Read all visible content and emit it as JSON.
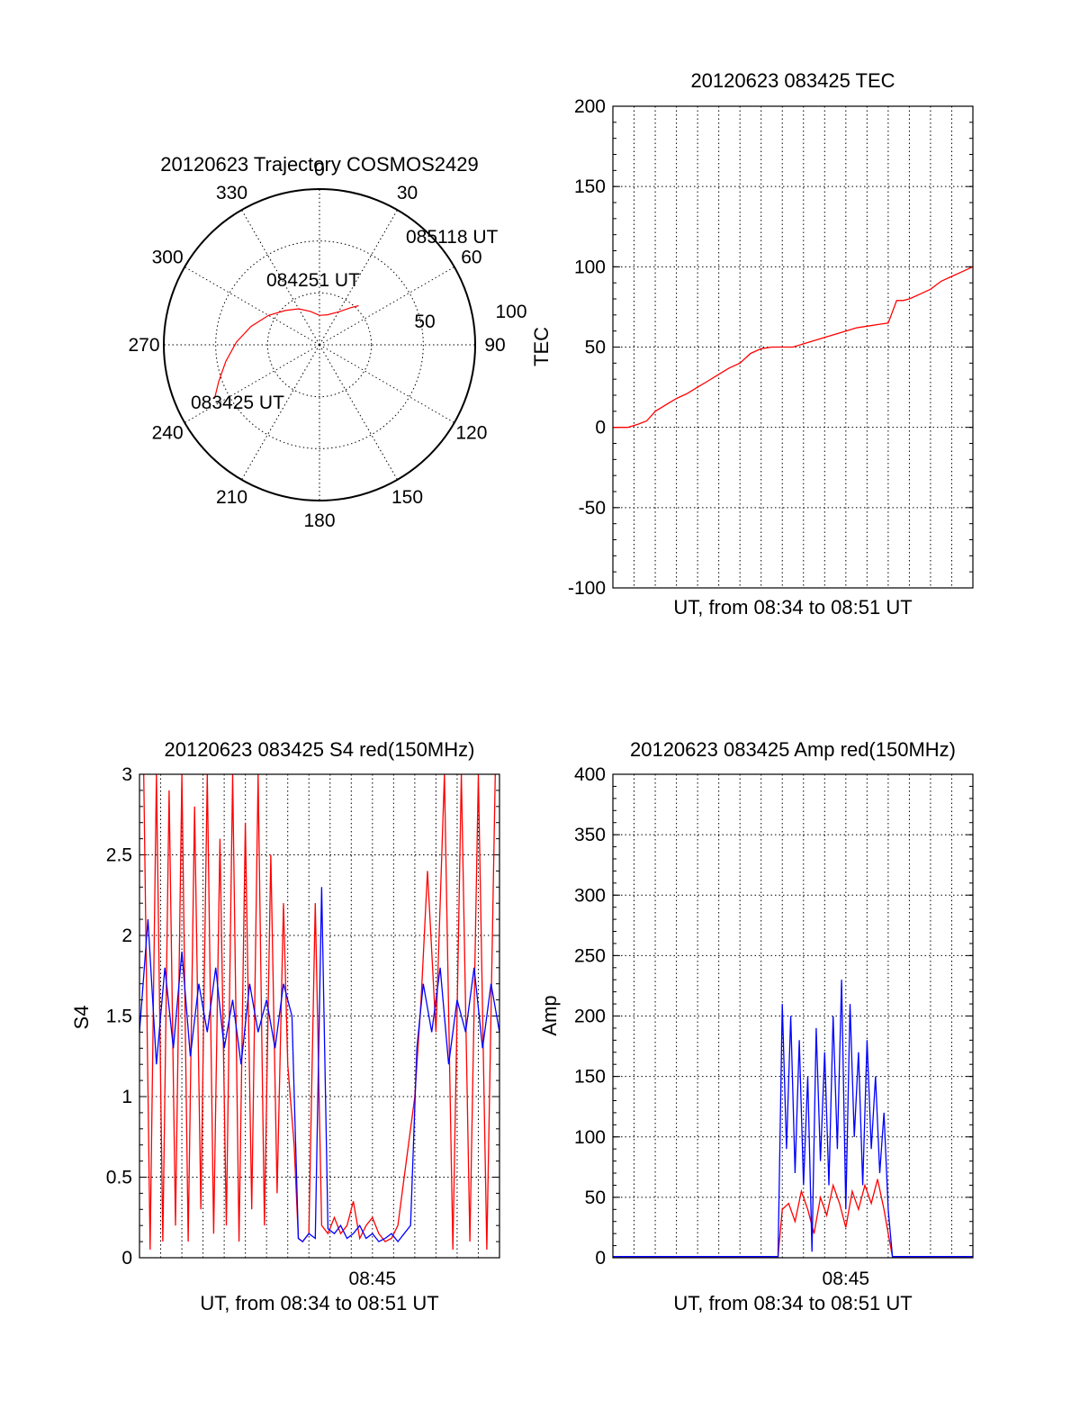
{
  "colors": {
    "red": "#ff0000",
    "blue": "#0000ff",
    "axis": "#000000"
  },
  "chart_data": [
    {
      "type": "polar",
      "title": "20120623 Trajectory COSMOS2429",
      "angle_labels": [
        "0",
        "30",
        "60",
        "90",
        "120",
        "150",
        "180",
        "210",
        "240",
        "270",
        "300",
        "330"
      ],
      "radius_labels": [
        "50",
        "100"
      ],
      "trajectory": {
        "azimuth_deg": [
          243,
          250,
          260,
          272,
          285,
          300,
          315,
          330,
          345,
          0,
          15,
          30,
          40,
          45
        ],
        "elevation_deg": [
          22,
          28,
          35,
          42,
          49,
          56,
          62,
          66,
          70,
          73,
          72,
          68,
          62,
          58
        ]
      },
      "point_labels": [
        "085118 UT",
        "084251 UT",
        "083425 UT"
      ]
    },
    {
      "type": "line",
      "title": "20120623 083425 TEC",
      "xlabel": "UT, from 08:34 to 08:51 UT",
      "ylabel": "TEC",
      "xlim": [
        0,
        17.0
      ],
      "ylim": [
        -100,
        200
      ],
      "yticks": [
        "200",
        "150",
        "100",
        "50",
        "0",
        "-50",
        "-100"
      ],
      "series": [
        {
          "x": [
            0,
            0.7,
            1.2,
            1.6,
            2.0,
            2.5,
            3.0,
            3.5,
            4.0,
            4.5,
            5.0,
            5.5,
            6.0,
            6.5,
            7.0,
            7.5,
            8.0,
            8.5,
            9.0,
            9.5,
            10.0,
            10.5,
            11.0,
            11.5,
            12.0,
            12.5,
            13.0,
            13.2,
            13.4,
            13.7,
            14.0,
            14.5,
            15.0,
            15.5,
            16.0,
            16.5,
            17.0
          ],
          "y": [
            0,
            0,
            2,
            4,
            10,
            14,
            18,
            21,
            25,
            29,
            33,
            37,
            40,
            46,
            49,
            50,
            50,
            50,
            52,
            54,
            56,
            58,
            60,
            62,
            63,
            64,
            65,
            72,
            79,
            79,
            80,
            83,
            86,
            91,
            94,
            97,
            100
          ]
        }
      ]
    },
    {
      "type": "line",
      "title": "20120623 083425 S4 red(150MHz)",
      "xlabel": "UT, from 08:34 to 08:51 UT",
      "ylabel": "S4",
      "xlim": [
        0,
        17.0
      ],
      "ylim": [
        0,
        3
      ],
      "yticks": [
        "3",
        "2.5",
        "2",
        "1.5",
        "1",
        "0.5",
        "0"
      ],
      "xticks": [
        "08:45"
      ],
      "xtick_values": [
        11.0
      ],
      "series": [
        {
          "name": "red",
          "x": [
            0.2,
            0.5,
            0.8,
            1.1,
            1.4,
            1.7,
            2.0,
            2.3,
            2.6,
            2.9,
            3.2,
            3.5,
            3.8,
            4.1,
            4.4,
            4.7,
            5.0,
            5.3,
            5.6,
            5.9,
            6.2,
            6.5,
            6.8,
            7.0,
            7.3,
            7.5,
            7.7,
            8.0,
            8.3,
            8.6,
            8.9,
            9.2,
            9.5,
            9.8,
            10.1,
            10.4,
            10.7,
            11.0,
            11.3,
            11.6,
            11.9,
            12.2,
            12.5,
            12.8,
            13.0,
            13.3,
            13.6,
            14.0,
            14.4,
            14.8,
            15.2,
            15.6,
            16.0,
            16.4,
            16.8
          ],
          "y": [
            3.0,
            0.05,
            3.0,
            0.1,
            2.9,
            0.2,
            3.0,
            0.1,
            2.8,
            0.3,
            3.0,
            0.15,
            2.6,
            0.2,
            3.0,
            0.1,
            2.7,
            0.3,
            3.0,
            0.2,
            2.5,
            0.4,
            2.2,
            1.2,
            0.7,
            0.12,
            0.1,
            0.15,
            2.2,
            0.2,
            0.15,
            0.25,
            0.15,
            0.2,
            0.35,
            0.12,
            0.2,
            0.25,
            0.15,
            0.1,
            0.12,
            0.2,
            0.5,
            0.8,
            1.0,
            1.6,
            2.4,
            1.4,
            3.0,
            0.05,
            3.0,
            0.1,
            3.0,
            0.05,
            3.0
          ]
        },
        {
          "name": "blue",
          "x": [
            0,
            0.4,
            0.8,
            1.2,
            1.6,
            2.0,
            2.4,
            2.8,
            3.2,
            3.6,
            4.0,
            4.4,
            4.8,
            5.2,
            5.6,
            6.0,
            6.4,
            6.8,
            7.2,
            7.5,
            7.7,
            8.0,
            8.3,
            8.6,
            8.9,
            9.2,
            9.5,
            9.8,
            10.1,
            10.4,
            10.7,
            11.0,
            11.3,
            11.6,
            11.9,
            12.2,
            12.5,
            12.8,
            13.1,
            13.4,
            13.8,
            14.2,
            14.6,
            15.0,
            15.4,
            15.8,
            16.2,
            16.6,
            17.0
          ],
          "y": [
            1.4,
            2.1,
            1.2,
            1.8,
            1.3,
            1.9,
            1.25,
            1.7,
            1.4,
            1.8,
            1.3,
            1.6,
            1.2,
            1.7,
            1.4,
            1.6,
            1.3,
            1.7,
            1.5,
            0.12,
            0.1,
            0.15,
            0.12,
            2.3,
            0.18,
            0.15,
            0.2,
            0.12,
            0.15,
            0.2,
            0.12,
            0.15,
            0.1,
            0.12,
            0.15,
            0.1,
            0.15,
            0.2,
            1.3,
            1.7,
            1.4,
            1.8,
            1.2,
            1.6,
            1.4,
            1.8,
            1.3,
            1.7,
            1.4
          ]
        }
      ]
    },
    {
      "type": "line",
      "title": "20120623 083425 Amp red(150MHz)",
      "xlabel": "UT, from 08:34 to 08:51 UT",
      "ylabel": "Amp",
      "xlim": [
        0,
        17.0
      ],
      "ylim": [
        0,
        400
      ],
      "yticks": [
        "400",
        "350",
        "300",
        "250",
        "200",
        "150",
        "100",
        "50",
        "0"
      ],
      "xticks": [
        "08:45"
      ],
      "xtick_values": [
        11.0
      ],
      "series": [
        {
          "name": "red",
          "x": [
            0,
            7.8,
            8.0,
            8.3,
            8.6,
            8.9,
            9.2,
            9.5,
            9.8,
            10.1,
            10.4,
            10.7,
            11.0,
            11.3,
            11.6,
            11.9,
            12.2,
            12.5,
            12.8,
            13.0,
            13.2,
            17.0
          ],
          "y": [
            1,
            1,
            40,
            45,
            30,
            55,
            40,
            20,
            50,
            35,
            60,
            45,
            25,
            55,
            40,
            60,
            45,
            65,
            40,
            20,
            1,
            1
          ]
        },
        {
          "name": "blue",
          "x": [
            0,
            7.8,
            8.0,
            8.2,
            8.4,
            8.6,
            8.8,
            9.0,
            9.2,
            9.4,
            9.6,
            9.8,
            10.0,
            10.2,
            10.4,
            10.6,
            10.8,
            11.0,
            11.2,
            11.4,
            11.6,
            11.8,
            12.0,
            12.2,
            12.4,
            12.6,
            12.8,
            13.0,
            13.2,
            17.0
          ],
          "y": [
            1,
            1,
            210,
            90,
            200,
            70,
            180,
            60,
            150,
            5,
            190,
            80,
            170,
            60,
            200,
            90,
            230,
            40,
            210,
            100,
            170,
            60,
            180,
            90,
            150,
            70,
            120,
            40,
            1,
            1
          ]
        }
      ]
    }
  ]
}
